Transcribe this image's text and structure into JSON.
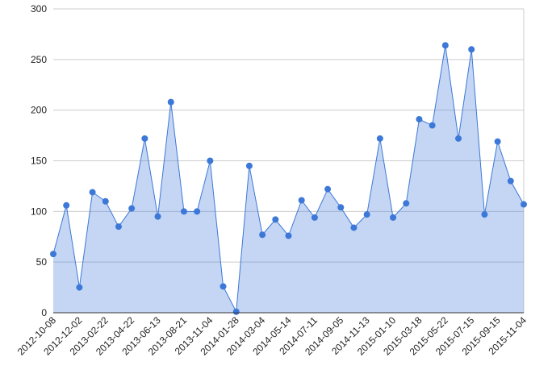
{
  "chart_data": {
    "type": "area",
    "categories": [
      "2012-10-08",
      null,
      "2012-12-02",
      null,
      "2013-02-22",
      null,
      "2013-04-22",
      null,
      "2013-06-13",
      null,
      "2013-08-21",
      null,
      "2013-11-04",
      null,
      "2014-01-28",
      null,
      "2014-03-04",
      null,
      "2014-05-14",
      null,
      "2014-07-11",
      null,
      "2014-09-05",
      null,
      "2014-11-13",
      null,
      "2015-01-10",
      null,
      "2015-03-18",
      null,
      "2015-05-22",
      null,
      "2015-07-15",
      null,
      "2015-09-15",
      null,
      "2015-11-04"
    ],
    "values": [
      58,
      106,
      25,
      119,
      110,
      85,
      103,
      172,
      95,
      208,
      100,
      100,
      150,
      26,
      1,
      145,
      77,
      92,
      76,
      111,
      94,
      122,
      104,
      84,
      97,
      172,
      94,
      108,
      191,
      185,
      264,
      172,
      260,
      97,
      169,
      130,
      107
    ],
    "color": "#3c78d8",
    "ylim": [
      0,
      300
    ],
    "yticks": [
      0,
      50,
      100,
      150,
      200,
      250,
      300
    ],
    "grid": true
  }
}
